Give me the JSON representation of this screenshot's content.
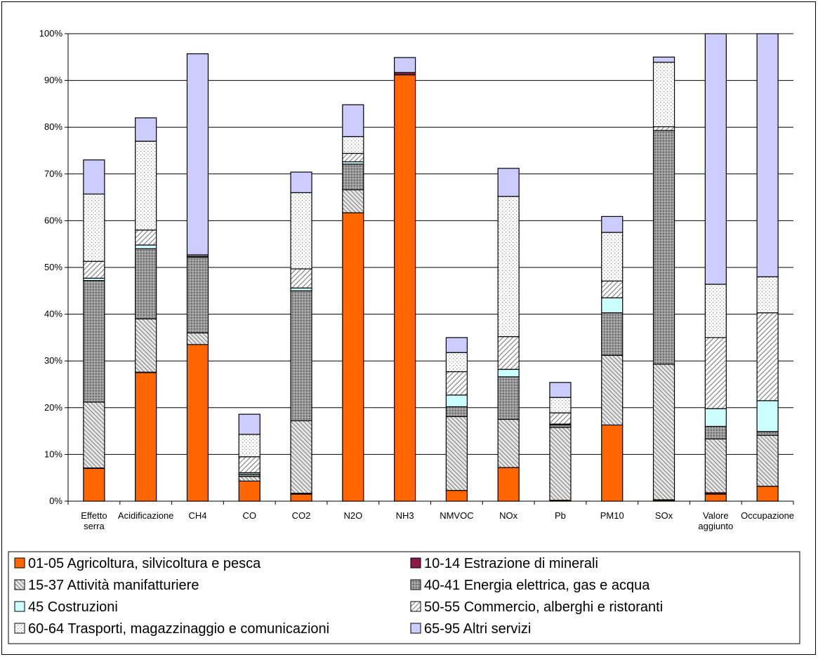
{
  "chart_data": {
    "type": "bar",
    "stacked": true,
    "title": "",
    "xlabel": "",
    "ylabel": "",
    "ylim": [
      0,
      100
    ],
    "y_tick_labels": [
      "0%",
      "10%",
      "20%",
      "30%",
      "40%",
      "50%",
      "60%",
      "70%",
      "80%",
      "90%",
      "100%"
    ],
    "grid": "horizontal",
    "legend_position": "bottom",
    "categories": [
      [
        "Effetto",
        "serra"
      ],
      [
        "Acidificazione"
      ],
      [
        "CH4"
      ],
      [
        "CO"
      ],
      [
        "CO2"
      ],
      [
        "N2O"
      ],
      [
        "NH3"
      ],
      [
        "NMVOC"
      ],
      [
        "NOx"
      ],
      [
        "Pb"
      ],
      [
        "PM10"
      ],
      [
        "SOx"
      ],
      [
        "Valore",
        "aggiunto"
      ],
      [
        "Occupazione"
      ]
    ],
    "series": [
      {
        "name": "01-05 Agricoltura, silvicoltura e pesca",
        "color": "#ff6600",
        "pattern": "solid",
        "values": [
          7,
          27.5,
          33.5,
          4.3,
          1.5,
          61.7,
          91.2,
          2.3,
          7.2,
          0.2,
          16.3,
          0.2,
          1.5,
          3.2
        ]
      },
      {
        "name": "10-14 Estrazione di minerali",
        "color": "#8b1a4a",
        "pattern": "solid",
        "values": [
          0.1,
          0.1,
          0,
          0,
          0.2,
          0,
          0.5,
          0,
          0,
          0,
          0,
          0.1,
          0.3,
          0
        ]
      },
      {
        "name": "15-37 Attività manifatturiere",
        "color": "#dcdcdc",
        "pattern": "diag",
        "values": [
          14.1,
          11.4,
          2.5,
          1.0,
          15.5,
          4.9,
          0,
          15.8,
          10.3,
          15.6,
          14.9,
          29.0,
          11.5,
          10.9
        ]
      },
      {
        "name": "40-41 Energia elettrica, gas e acqua",
        "color": "#a9a9a9",
        "pattern": "dots",
        "values": [
          26.0,
          15.0,
          16.2,
          0.5,
          27.8,
          5.5,
          0,
          2.1,
          9.1,
          0.5,
          9.1,
          50.0,
          2.7,
          0.8
        ]
      },
      {
        "name": "45 Costruzioni",
        "color": "#ccffff",
        "pattern": "solid",
        "values": [
          0.5,
          0.8,
          0,
          0.3,
          0.6,
          0.5,
          0,
          2.5,
          1.6,
          0.2,
          3.2,
          0,
          3.8,
          6.6
        ]
      },
      {
        "name": "50-55 Commercio, alberghi e ristoranti",
        "color": "#ffffff",
        "pattern": "hatch",
        "values": [
          3.6,
          3.2,
          0.2,
          3.4,
          4.1,
          1.8,
          0,
          5.0,
          7.0,
          2.4,
          3.6,
          0.8,
          15.2,
          18.8
        ]
      },
      {
        "name": "60-64 Trasporti, magazzinaggio e comunicazioni",
        "color": "#ffffff",
        "pattern": "fine",
        "values": [
          14.4,
          19.0,
          0.3,
          4.8,
          16.3,
          3.6,
          0,
          4.1,
          30.0,
          3.3,
          10.4,
          13.8,
          11.4,
          7.7
        ]
      },
      {
        "name": "65-95 Altri servizi",
        "color": "#ccccff",
        "pattern": "solid",
        "values": [
          7.3,
          5.0,
          43.0,
          4.3,
          4.4,
          6.8,
          3.2,
          3.2,
          6.0,
          3.2,
          3.4,
          1.1,
          53.6,
          52.0
        ]
      }
    ]
  }
}
